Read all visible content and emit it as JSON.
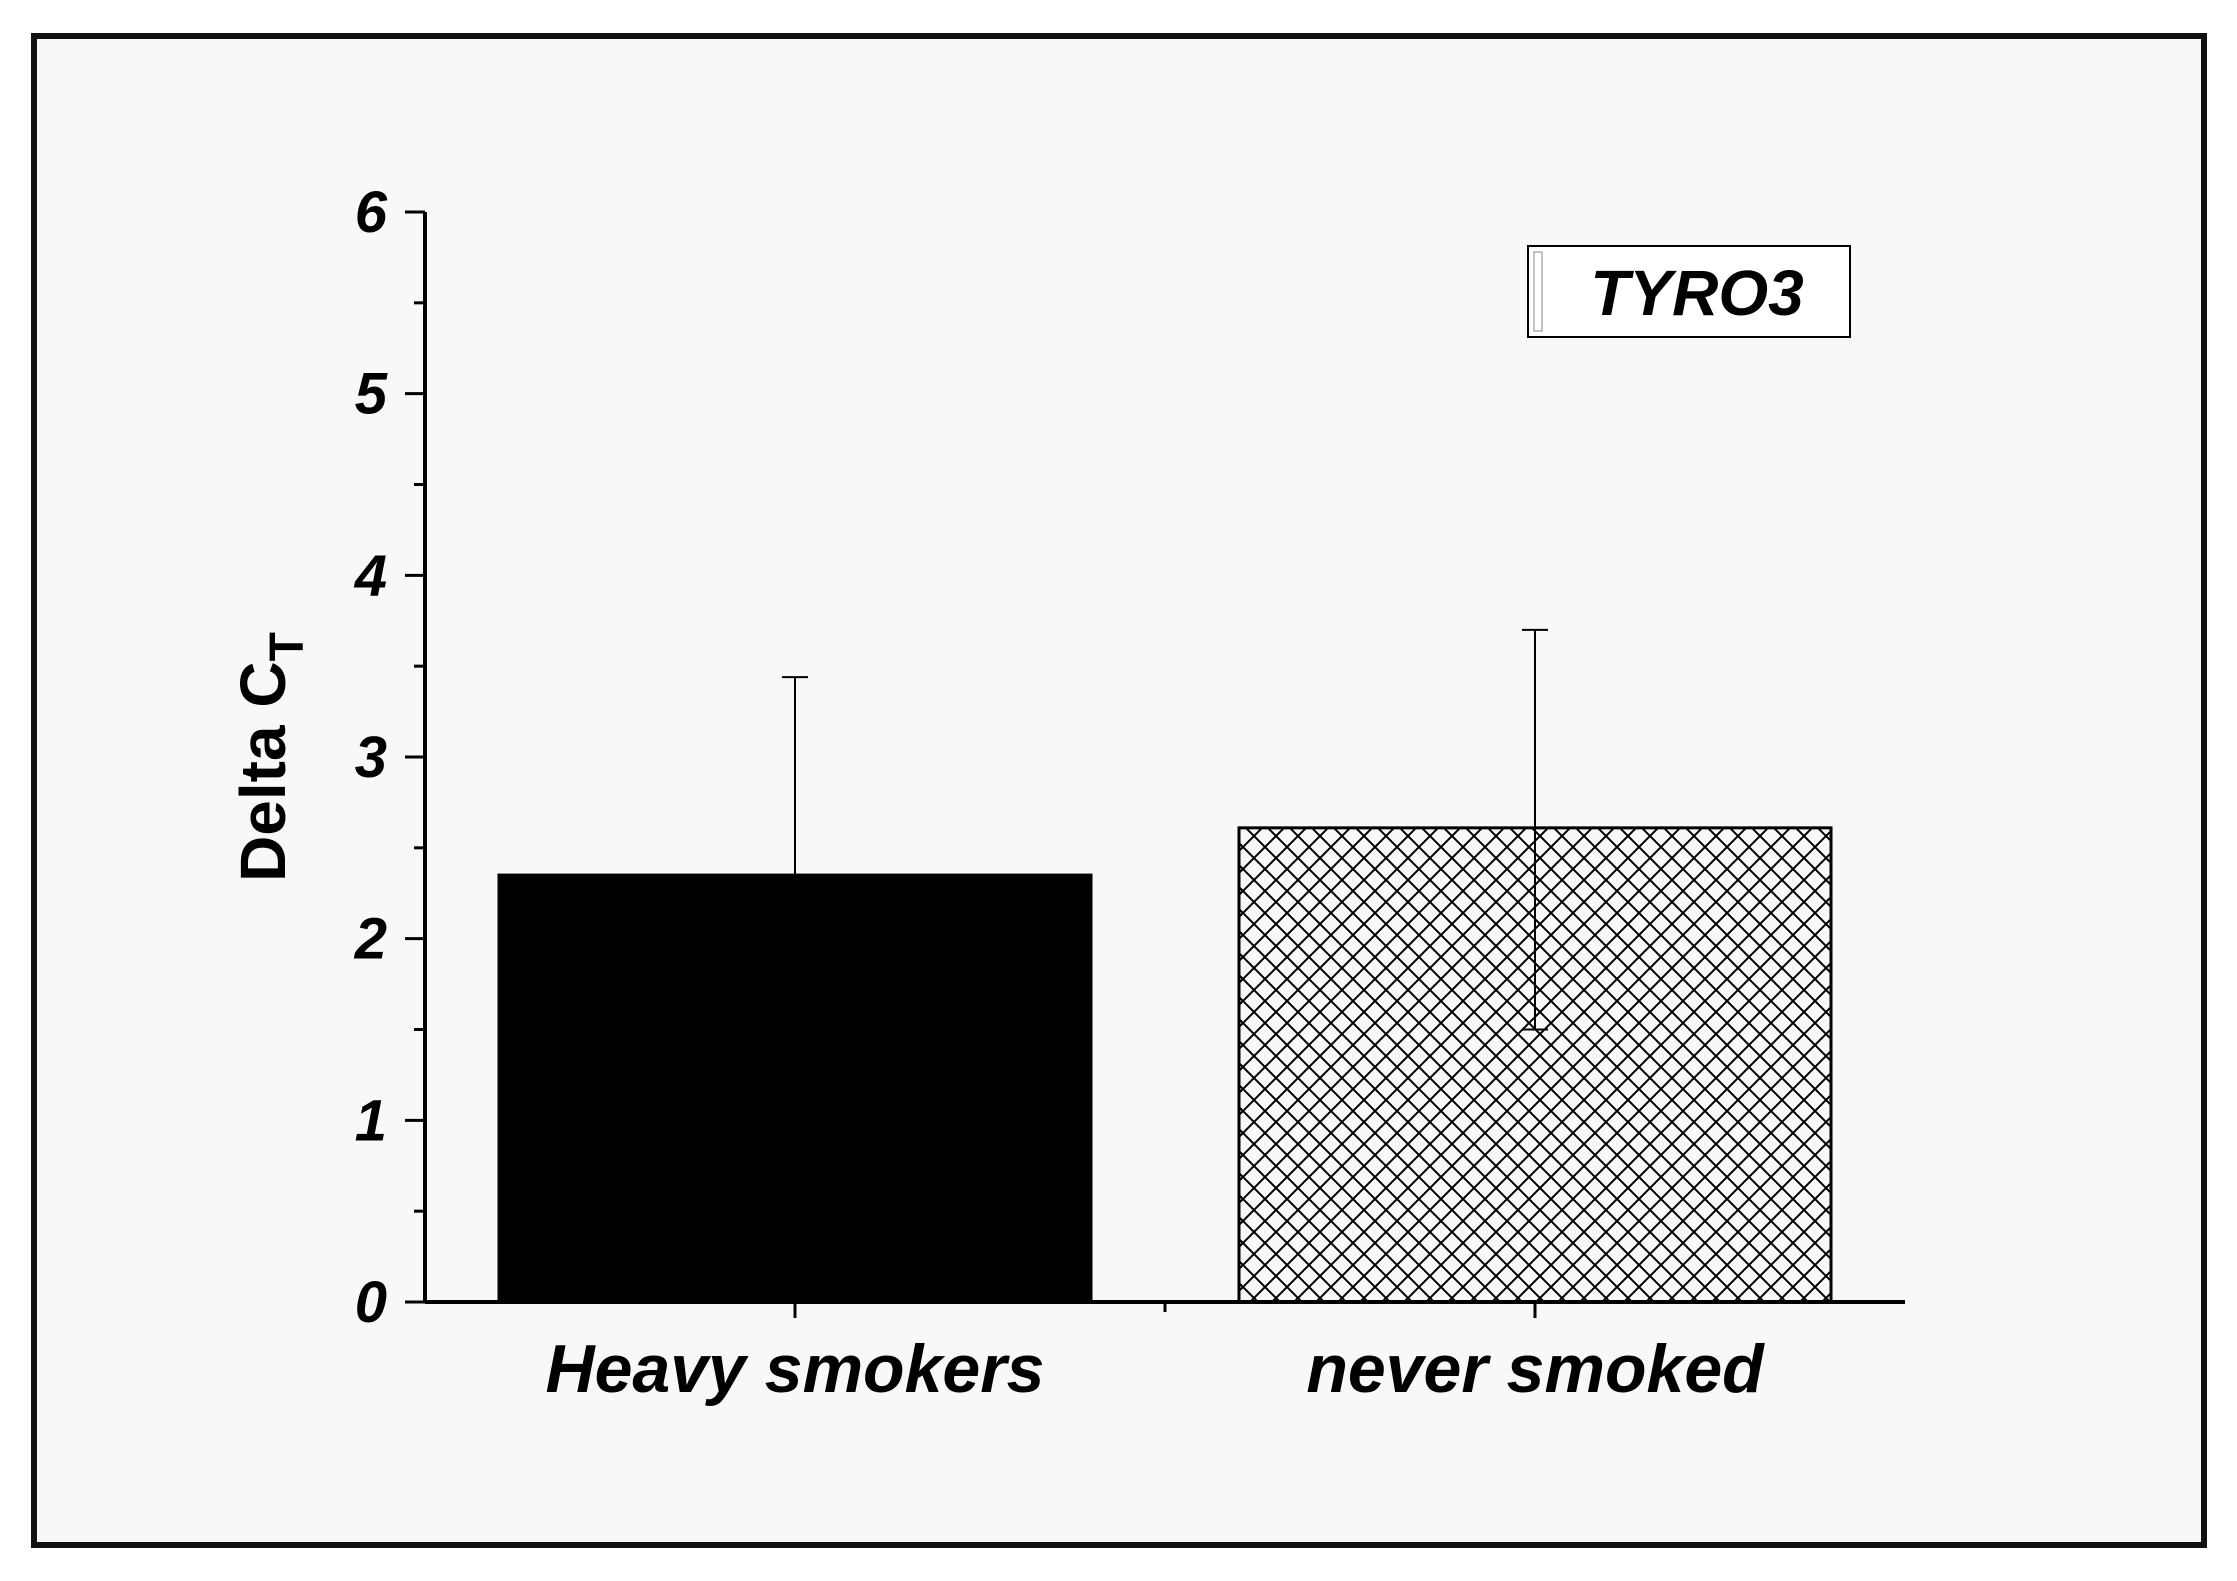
{
  "chart_data": {
    "type": "bar",
    "categories": [
      "Heavy smokers",
      "never smoked"
    ],
    "series": [
      {
        "values": [
          2.35,
          2.61
        ],
        "error_plus": [
          1.09,
          1.09
        ],
        "error_minus": [
          0,
          1.11
        ],
        "fills": [
          "solid-black",
          "crosshatch"
        ]
      }
    ],
    "ylabel_main": "Delta C",
    "ylabel_sub": "T",
    "xlabel": "",
    "ylim": [
      0,
      6
    ],
    "yticks": [
      "0",
      "1",
      "2",
      "3",
      "4",
      "5",
      "6"
    ],
    "legend_label": "TYRO3",
    "legend_placement": "top-right",
    "grid": false,
    "colors": {
      "bar_solid": "#000000",
      "hatch": "#000000",
      "background": "#f8f8f8"
    }
  }
}
